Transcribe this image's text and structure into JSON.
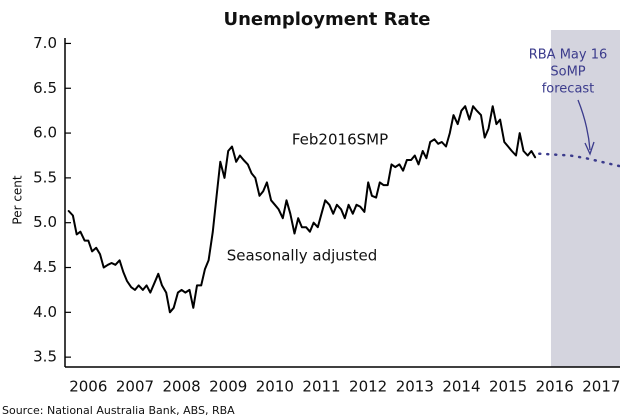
{
  "chart_data": {
    "type": "line",
    "title": "Unemployment Rate",
    "y_label": "Per cent",
    "source": "Source: National Australia Bank, ABS, RBA",
    "xlim": [
      2006,
      2017.9
    ],
    "ylim": [
      3.39,
      7.15
    ],
    "yticks": [
      {
        "value": 3.5,
        "label": "3.5"
      },
      {
        "value": 4,
        "label": "4.0"
      },
      {
        "value": 4.5,
        "label": "4.5"
      },
      {
        "value": 5,
        "label": "5.0"
      },
      {
        "value": 5.5,
        "label": "5.5"
      },
      {
        "value": 6,
        "label": "6.0"
      },
      {
        "value": 6.5,
        "label": "6.5"
      },
      {
        "value": 7,
        "label": "7.0"
      }
    ],
    "xticks": [
      {
        "value": 2006.5,
        "label": "2006"
      },
      {
        "value": 2007.5,
        "label": "2007"
      },
      {
        "value": 2008.5,
        "label": "2008"
      },
      {
        "value": 2009.5,
        "label": "2009"
      },
      {
        "value": 2010.5,
        "label": "2010"
      },
      {
        "value": 2011.5,
        "label": "2011"
      },
      {
        "value": 2012.5,
        "label": "2012"
      },
      {
        "value": 2013.5,
        "label": "2013"
      },
      {
        "value": 2014.5,
        "label": "2014"
      },
      {
        "value": 2015.5,
        "label": "2015"
      },
      {
        "value": 2016.5,
        "label": "2016"
      },
      {
        "value": 2017.5,
        "label": "2017"
      }
    ],
    "shade": {
      "from": 2016.42,
      "color": "#d4d4de"
    },
    "series": [
      {
        "color": "#000000",
        "dash": false,
        "x": [
          2006.08,
          2006.17,
          2006.25,
          2006.33,
          2006.42,
          2006.5,
          2006.58,
          2006.67,
          2006.75,
          2006.83,
          2006.92,
          2007,
          2007.08,
          2007.17,
          2007.25,
          2007.33,
          2007.42,
          2007.5,
          2007.58,
          2007.67,
          2007.75,
          2007.83,
          2007.92,
          2008,
          2008.08,
          2008.17,
          2008.25,
          2008.33,
          2008.42,
          2008.5,
          2008.58,
          2008.67,
          2008.75,
          2008.83,
          2008.92,
          2009,
          2009.08,
          2009.17,
          2009.25,
          2009.33,
          2009.42,
          2009.5,
          2009.58,
          2009.67,
          2009.75,
          2009.83,
          2009.92,
          2010,
          2010.08,
          2010.17,
          2010.25,
          2010.33,
          2010.42,
          2010.5,
          2010.58,
          2010.67,
          2010.75,
          2010.83,
          2010.92,
          2011,
          2011.08,
          2011.17,
          2011.25,
          2011.33,
          2011.42,
          2011.5,
          2011.58,
          2011.67,
          2011.75,
          2011.83,
          2011.92,
          2012,
          2012.08,
          2012.17,
          2012.25,
          2012.33,
          2012.42,
          2012.5,
          2012.58,
          2012.67,
          2012.75,
          2012.83,
          2012.92,
          2013,
          2013.08,
          2013.17,
          2013.25,
          2013.33,
          2013.42,
          2013.5,
          2013.58,
          2013.67,
          2013.75,
          2013.83,
          2013.92,
          2014,
          2014.08,
          2014.17,
          2014.25,
          2014.33,
          2014.42,
          2014.5,
          2014.58,
          2014.67,
          2014.75,
          2014.83,
          2014.92,
          2015,
          2015.08,
          2015.17,
          2015.25,
          2015.33,
          2015.42,
          2015.5,
          2015.58,
          2015.67,
          2015.75,
          2015.83,
          2015.92,
          2016,
          2016.08
        ],
        "values": [
          5.13,
          5.08,
          4.87,
          4.9,
          4.8,
          4.8,
          4.68,
          4.72,
          4.65,
          4.5,
          4.53,
          4.55,
          4.53,
          4.58,
          4.45,
          4.35,
          4.28,
          4.25,
          4.3,
          4.25,
          4.3,
          4.22,
          4.33,
          4.43,
          4.3,
          4.22,
          4.0,
          4.05,
          4.22,
          4.25,
          4.22,
          4.25,
          4.05,
          4.3,
          4.3,
          4.48,
          4.58,
          4.9,
          5.3,
          5.68,
          5.5,
          5.8,
          5.85,
          5.68,
          5.75,
          5.7,
          5.65,
          5.55,
          5.5,
          5.3,
          5.35,
          5.45,
          5.25,
          5.2,
          5.15,
          5.05,
          5.25,
          5.1,
          4.88,
          5.05,
          4.95,
          4.95,
          4.9,
          5.0,
          4.95,
          5.1,
          5.25,
          5.2,
          5.1,
          5.2,
          5.15,
          5.05,
          5.2,
          5.1,
          5.2,
          5.18,
          5.12,
          5.45,
          5.3,
          5.28,
          5.45,
          5.42,
          5.42,
          5.65,
          5.62,
          5.65,
          5.58,
          5.7,
          5.7,
          5.75,
          5.65,
          5.8,
          5.72,
          5.9,
          5.93,
          5.88,
          5.9,
          5.85,
          6.0,
          6.2,
          6.1,
          6.25,
          6.3,
          6.15,
          6.3,
          6.25,
          6.2,
          5.95,
          6.05,
          6.3,
          6.1,
          6.15,
          5.9,
          5.85,
          5.8,
          5.75,
          6.0,
          5.8,
          5.75,
          5.8,
          5.73
        ]
      },
      {
        "color": "#3b3b8c",
        "dash": true,
        "x": [
          2016.17,
          2016.5,
          2016.83,
          2017.17,
          2017.5,
          2017.9
        ],
        "values": [
          5.77,
          5.76,
          5.75,
          5.72,
          5.68,
          5.63
        ]
      }
    ],
    "annotations": [
      {
        "lines": [
          "RBA May 16",
          "SoMP",
          "forecast"
        ],
        "color": "#3b3b8c"
      },
      {
        "lines": [
          "Feb2016SMP"
        ],
        "color": "#111111"
      },
      {
        "lines": [
          "Seasonally adjusted"
        ],
        "color": "#111111"
      }
    ]
  }
}
